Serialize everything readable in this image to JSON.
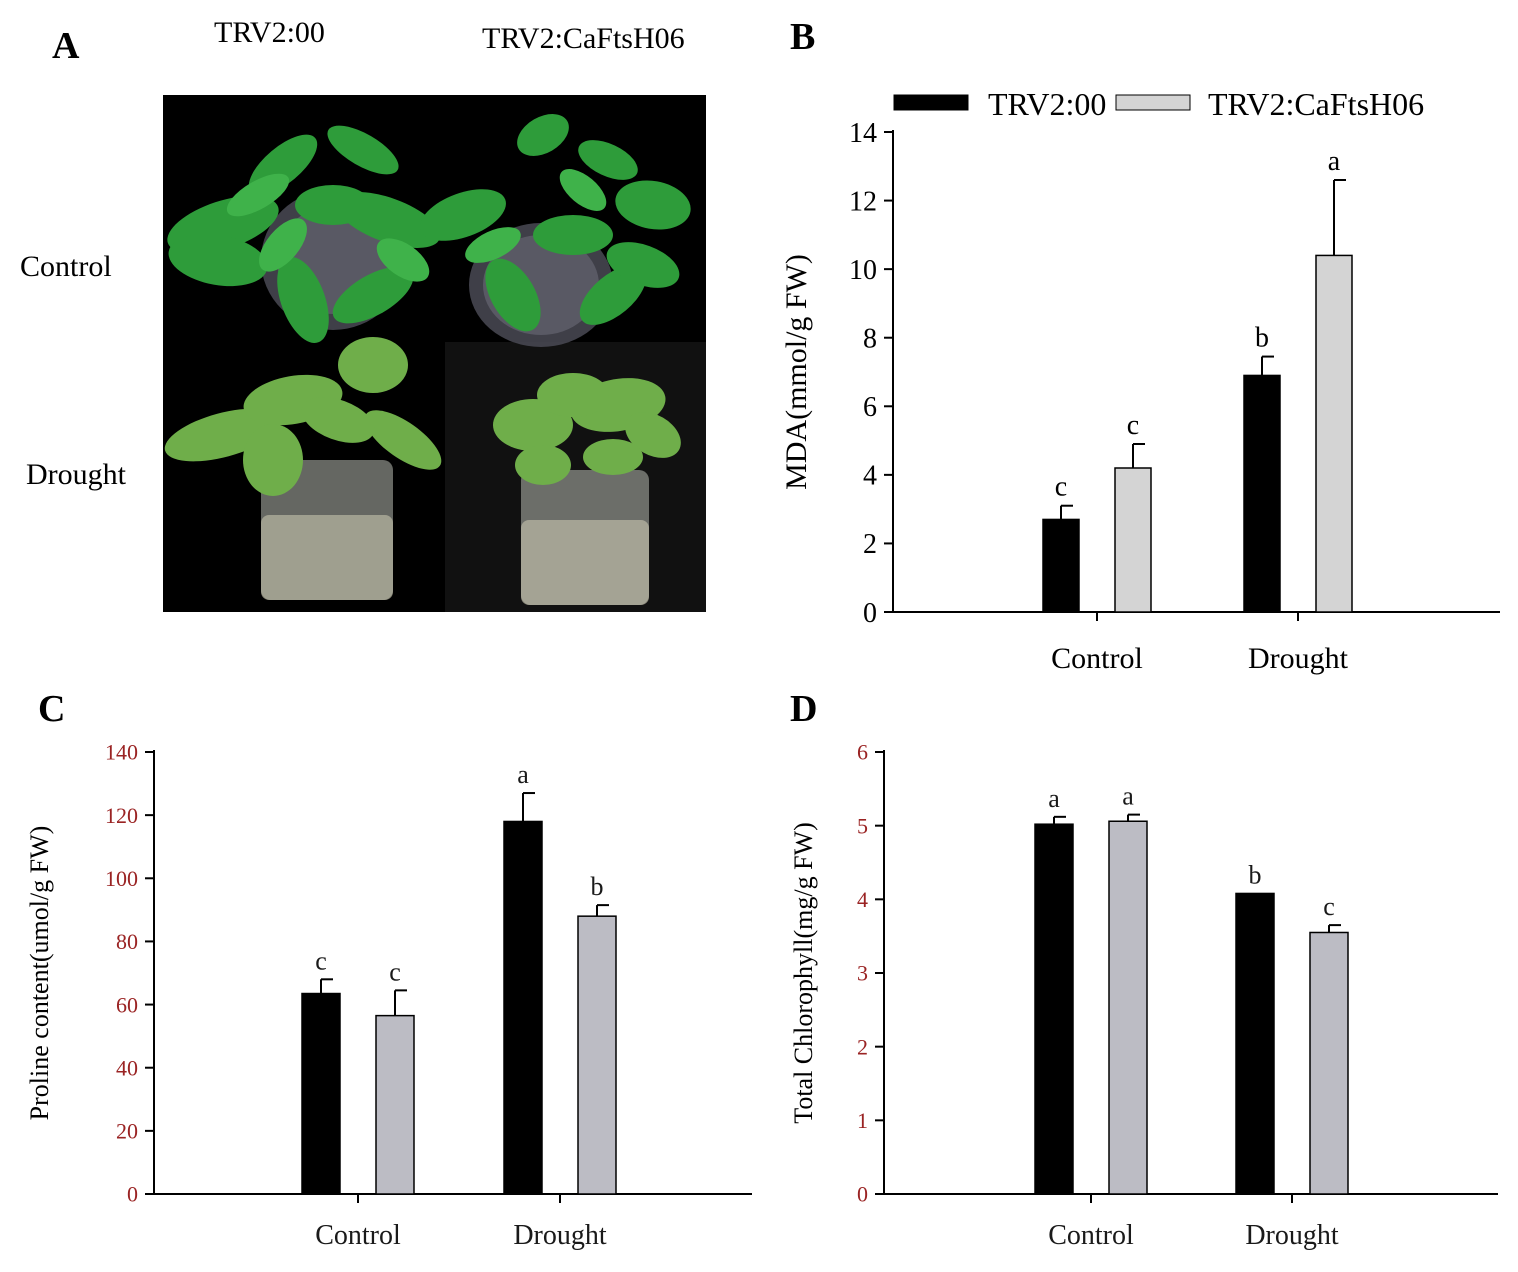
{
  "panels": {
    "a": {
      "letter": "A",
      "col_labels": [
        "TRV2:00",
        "TRV2:CaFtsH06"
      ],
      "row_labels": [
        "Control",
        "Drought"
      ]
    },
    "b": {
      "letter": "B"
    },
    "c": {
      "letter": "C"
    },
    "d": {
      "letter": "D"
    }
  },
  "colors": {
    "trv2_00": "#000000",
    "trv2_caftsh06_b": "#d4d4d4",
    "trv2_caftsh06_cd": "#bcbcc4"
  },
  "chart_data": [
    {
      "id": "B",
      "type": "bar",
      "categories": [
        "Control",
        "Drought"
      ],
      "series": [
        {
          "name": "TRV2:00",
          "values": [
            2.7,
            6.9
          ],
          "errors": [
            0.4,
            0.55
          ],
          "letters": [
            "c",
            "b"
          ]
        },
        {
          "name": "TRV2:CaFtsH06",
          "values": [
            4.2,
            10.4
          ],
          "errors": [
            0.7,
            2.2
          ],
          "letters": [
            "c",
            "a"
          ]
        }
      ],
      "xlabel": "",
      "ylabel": "MDA(mmol/g FW)",
      "ylim": [
        0,
        14
      ],
      "yticks": [
        "0",
        "2",
        "4",
        "6",
        "8",
        "10",
        "12",
        "14"
      ],
      "legend": "top"
    },
    {
      "id": "C",
      "type": "bar",
      "categories": [
        "Control",
        "Drought"
      ],
      "series": [
        {
          "name": "TRV2:00",
          "values": [
            63.5,
            118
          ],
          "errors": [
            4.5,
            9
          ],
          "letters": [
            "c",
            "a"
          ]
        },
        {
          "name": "TRV2:CaFtsH06",
          "values": [
            56.5,
            88
          ],
          "errors": [
            8,
            3.5
          ],
          "letters": [
            "c",
            "b"
          ]
        }
      ],
      "xlabel": "",
      "ylabel": "Proline content(umol/g FW)",
      "ylim": [
        0,
        140
      ],
      "yticks": [
        "0",
        "20",
        "40",
        "60",
        "80",
        "100",
        "120",
        "140"
      ]
    },
    {
      "id": "D",
      "type": "bar",
      "categories": [
        "Control",
        "Drought"
      ],
      "series": [
        {
          "name": "TRV2:00",
          "values": [
            5.02,
            4.08
          ],
          "errors": [
            0.1,
            0
          ],
          "letters": [
            "a",
            "b"
          ]
        },
        {
          "name": "TRV2:CaFtsH06",
          "values": [
            5.06,
            3.55
          ],
          "errors": [
            0.09,
            0.1
          ],
          "letters": [
            "a",
            "c"
          ]
        }
      ],
      "xlabel": "",
      "ylabel": "Total Chlorophyll(mg/g FW)",
      "ylim": [
        0,
        6
      ],
      "yticks": [
        "0",
        "1",
        "2",
        "3",
        "4",
        "5",
        "6"
      ]
    }
  ]
}
